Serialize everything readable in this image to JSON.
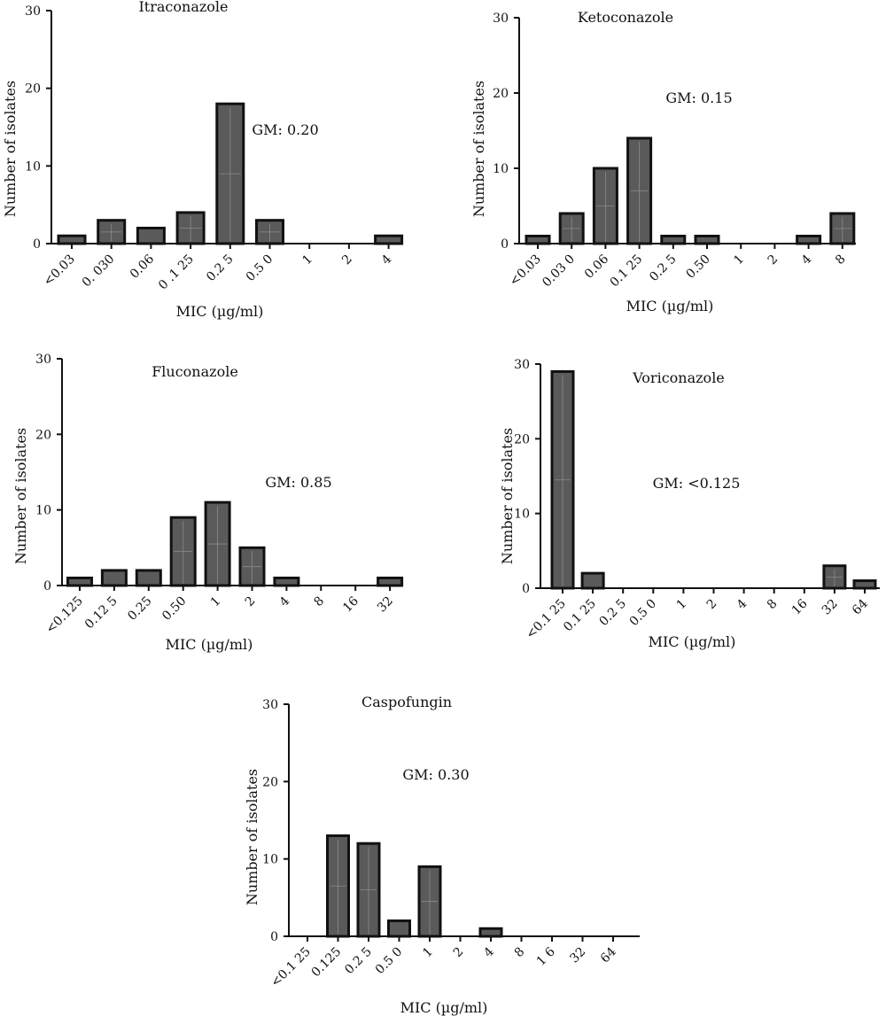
{
  "chart_data": [
    {
      "type": "bar",
      "title": "Itraconazole",
      "annotation": "GM: 0.20",
      "xlabel": "MIC (µg/ml)",
      "ylabel": "Number of isolates",
      "ylim": [
        0,
        30
      ],
      "yticks": [
        "0",
        "10",
        "20",
        "30"
      ],
      "categories": [
        "<0.03",
        "0.  030",
        "0.06",
        "0  .1 25",
        "0.2 5",
        "0.5 0",
        "1",
        "2",
        "4"
      ],
      "values": [
        1,
        3,
        2,
        4,
        18,
        3,
        0,
        0,
        1
      ]
    },
    {
      "type": "bar",
      "title": "Ketoconazole",
      "annotation": "GM: 0.15",
      "xlabel": "MIC (µg/ml)",
      "ylabel": "Number of isolates",
      "ylim": [
        0,
        30
      ],
      "yticks": [
        "0",
        "10",
        "20",
        "30"
      ],
      "categories": [
        "<0.03",
        "0.03 0",
        "0.06",
        "0.1 25",
        "0.2 5",
        "0.50",
        "1",
        "2",
        "4",
        "8"
      ],
      "values": [
        1,
        4,
        10,
        14,
        1,
        1,
        0,
        0,
        1,
        4
      ]
    },
    {
      "type": "bar",
      "title": "Fluconazole",
      "annotation": "GM: 0.85",
      "xlabel": "MIC (µg/ml)",
      "ylabel": "Number of isolates",
      "ylim": [
        0,
        30
      ],
      "yticks": [
        "0",
        "10",
        "20",
        "30"
      ],
      "categories": [
        "<0.125",
        "0.12 5",
        "0.25",
        "0.50",
        "1",
        "2",
        "4",
        "8",
        "16",
        "32"
      ],
      "values": [
        1,
        2,
        2,
        9,
        11,
        5,
        1,
        0,
        0,
        1
      ]
    },
    {
      "type": "bar",
      "title": "Voriconazole",
      "annotation": "GM: <0.125",
      "xlabel": "MIC (µg/ml)",
      "ylabel": "Number of isolates",
      "ylim": [
        0,
        30
      ],
      "yticks": [
        "0",
        "10",
        "20",
        "30"
      ],
      "categories": [
        "<0.1 25",
        "0.1 25",
        "0.2 5",
        "0.5 0",
        "1",
        "2",
        "4",
        "8",
        "16",
        "32",
        "64"
      ],
      "values": [
        29,
        2,
        0,
        0,
        0,
        0,
        0,
        0,
        0,
        3,
        1
      ]
    },
    {
      "type": "bar",
      "title": "Caspofungin",
      "annotation": "GM: 0.30",
      "xlabel": "MIC (µg/ml)",
      "ylabel": "Number of isolates",
      "ylim": [
        0,
        30
      ],
      "yticks": [
        "0",
        "10",
        "20",
        "30"
      ],
      "categories": [
        "<0.1 25",
        "0.125",
        "0.2 5",
        "0.5 0",
        "1",
        "2",
        "4",
        "8",
        "1 6",
        "32",
        "64"
      ],
      "values": [
        0,
        13,
        12,
        2,
        9,
        0,
        1,
        0,
        0,
        0,
        0
      ]
    }
  ]
}
